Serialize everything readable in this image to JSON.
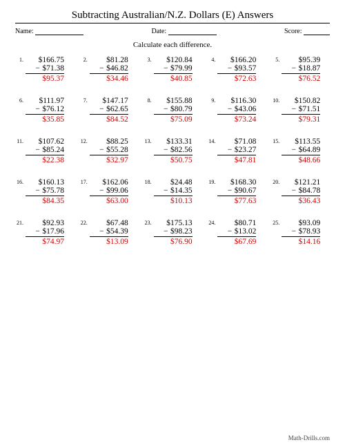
{
  "title": "Subtracting Australian/N.Z. Dollars (E) Answers",
  "labels": {
    "name": "Name:",
    "date": "Date:",
    "score": "Score:"
  },
  "instruction": "Calculate each difference.",
  "footer": "Math-Drills.com",
  "colors": {
    "answer": "#d00000",
    "text": "#000000",
    "bg": "#ffffff"
  },
  "currency": "$",
  "problems": [
    {
      "n": "1.",
      "minuend": "$166.75",
      "subtrahend": "$71.38",
      "answer": "$95.37"
    },
    {
      "n": "2.",
      "minuend": "$81.28",
      "subtrahend": "$46.82",
      "answer": "$34.46"
    },
    {
      "n": "3.",
      "minuend": "$120.84",
      "subtrahend": "$79.99",
      "answer": "$40.85"
    },
    {
      "n": "4.",
      "minuend": "$166.20",
      "subtrahend": "$93.57",
      "answer": "$72.63"
    },
    {
      "n": "5.",
      "minuend": "$95.39",
      "subtrahend": "$18.87",
      "answer": "$76.52"
    },
    {
      "n": "6.",
      "minuend": "$111.97",
      "subtrahend": "$76.12",
      "answer": "$35.85"
    },
    {
      "n": "7.",
      "minuend": "$147.17",
      "subtrahend": "$62.65",
      "answer": "$84.52"
    },
    {
      "n": "8.",
      "minuend": "$155.88",
      "subtrahend": "$80.79",
      "answer": "$75.09"
    },
    {
      "n": "9.",
      "minuend": "$116.30",
      "subtrahend": "$43.06",
      "answer": "$73.24"
    },
    {
      "n": "10.",
      "minuend": "$150.82",
      "subtrahend": "$71.51",
      "answer": "$79.31"
    },
    {
      "n": "11.",
      "minuend": "$107.62",
      "subtrahend": "$85.24",
      "answer": "$22.38"
    },
    {
      "n": "12.",
      "minuend": "$88.25",
      "subtrahend": "$55.28",
      "answer": "$32.97"
    },
    {
      "n": "13.",
      "minuend": "$133.31",
      "subtrahend": "$82.56",
      "answer": "$50.75"
    },
    {
      "n": "14.",
      "minuend": "$71.08",
      "subtrahend": "$23.27",
      "answer": "$47.81"
    },
    {
      "n": "15.",
      "minuend": "$113.55",
      "subtrahend": "$64.89",
      "answer": "$48.66"
    },
    {
      "n": "16.",
      "minuend": "$160.13",
      "subtrahend": "$75.78",
      "answer": "$84.35"
    },
    {
      "n": "17.",
      "minuend": "$162.06",
      "subtrahend": "$99.06",
      "answer": "$63.00"
    },
    {
      "n": "18.",
      "minuend": "$24.48",
      "subtrahend": "$14.35",
      "answer": "$10.13"
    },
    {
      "n": "19.",
      "minuend": "$168.30",
      "subtrahend": "$90.67",
      "answer": "$77.63"
    },
    {
      "n": "20.",
      "minuend": "$121.21",
      "subtrahend": "$84.78",
      "answer": "$36.43"
    },
    {
      "n": "21.",
      "minuend": "$92.93",
      "subtrahend": "$17.96",
      "answer": "$74.97"
    },
    {
      "n": "22.",
      "minuend": "$67.48",
      "subtrahend": "$54.39",
      "answer": "$13.09"
    },
    {
      "n": "23.",
      "minuend": "$175.13",
      "subtrahend": "$98.23",
      "answer": "$76.90"
    },
    {
      "n": "24.",
      "minuend": "$80.71",
      "subtrahend": "$13.02",
      "answer": "$67.69"
    },
    {
      "n": "25.",
      "minuend": "$93.09",
      "subtrahend": "$78.93",
      "answer": "$14.16"
    }
  ]
}
